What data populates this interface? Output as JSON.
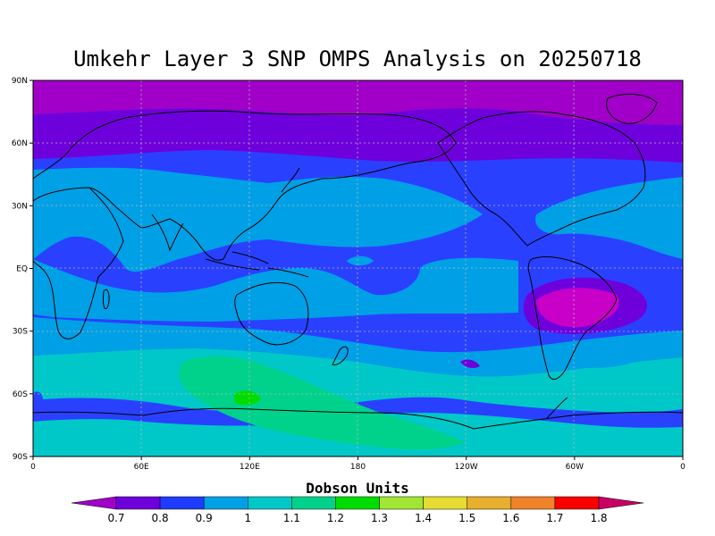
{
  "title": "Umkehr Layer 3 SNP OMPS Analysis on 20250718",
  "colorbar": {
    "title": "Dobson Units",
    "labels": [
      "0.7",
      "0.8",
      "0.9",
      "1",
      "1.1",
      "1.2",
      "1.3",
      "1.4",
      "1.5",
      "1.6",
      "1.7",
      "1.8"
    ],
    "colors": [
      "#a000c8",
      "#6e00dc",
      "#1e3cff",
      "#00a0e6",
      "#00c8c8",
      "#00d28c",
      "#00dc00",
      "#a0e632",
      "#e6dc32",
      "#e6af2d",
      "#f08228",
      "#fa0000",
      "#c80064"
    ]
  },
  "axes": {
    "lat_labels": [
      "90N",
      "60N",
      "30N",
      "EQ",
      "30S",
      "60S",
      "90S"
    ],
    "lon_labels": [
      "0",
      "60E",
      "120E",
      "180",
      "120W",
      "60W",
      "0"
    ]
  },
  "legend_title_note": "",
  "regions": {
    "colors": {
      "purple": "#a000c8",
      "violet": "#6e00dc",
      "blue": "#2a40ff",
      "cyan": "#00a0e6",
      "teal": "#00c8c8",
      "green": "#00d28c",
      "brightgreen": "#00dc00",
      "magenta": "#c800c8"
    }
  }
}
